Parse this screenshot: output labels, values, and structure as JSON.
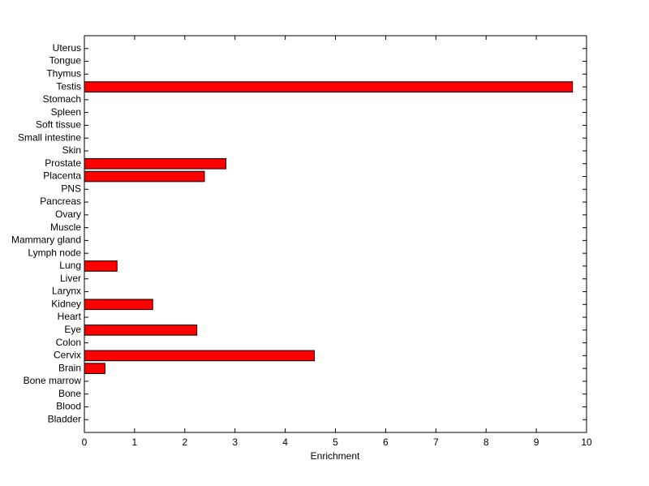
{
  "chart_data": {
    "type": "barh",
    "xlabel": "Enrichment",
    "categories": [
      "Bladder",
      "Blood",
      "Bone",
      "Bone marrow",
      "Brain",
      "Cervix",
      "Colon",
      "Eye",
      "Heart",
      "Kidney",
      "Larynx",
      "Liver",
      "Lung",
      "Lymph node",
      "Mammary gland",
      "Muscle",
      "Ovary",
      "Pancreas",
      "PNS",
      "Placenta",
      "Prostate",
      "Skin",
      "Small intestine",
      "Soft tissue",
      "Spleen",
      "Stomach",
      "Testis",
      "Thymus",
      "Tongue",
      "Uterus"
    ],
    "values": [
      0,
      0,
      0,
      0,
      0.41,
      4.58,
      0,
      2.24,
      0,
      1.36,
      0,
      0,
      0.65,
      0,
      0,
      0,
      0,
      0,
      0,
      2.39,
      2.82,
      0,
      0,
      0,
      0,
      0,
      9.72,
      0,
      0,
      0
    ],
    "color": "#ff0000",
    "xlim": [
      0,
      10
    ],
    "xticks": [
      0,
      1,
      2,
      3,
      4,
      5,
      6,
      7,
      8,
      9,
      10
    ],
    "grid": false
  }
}
